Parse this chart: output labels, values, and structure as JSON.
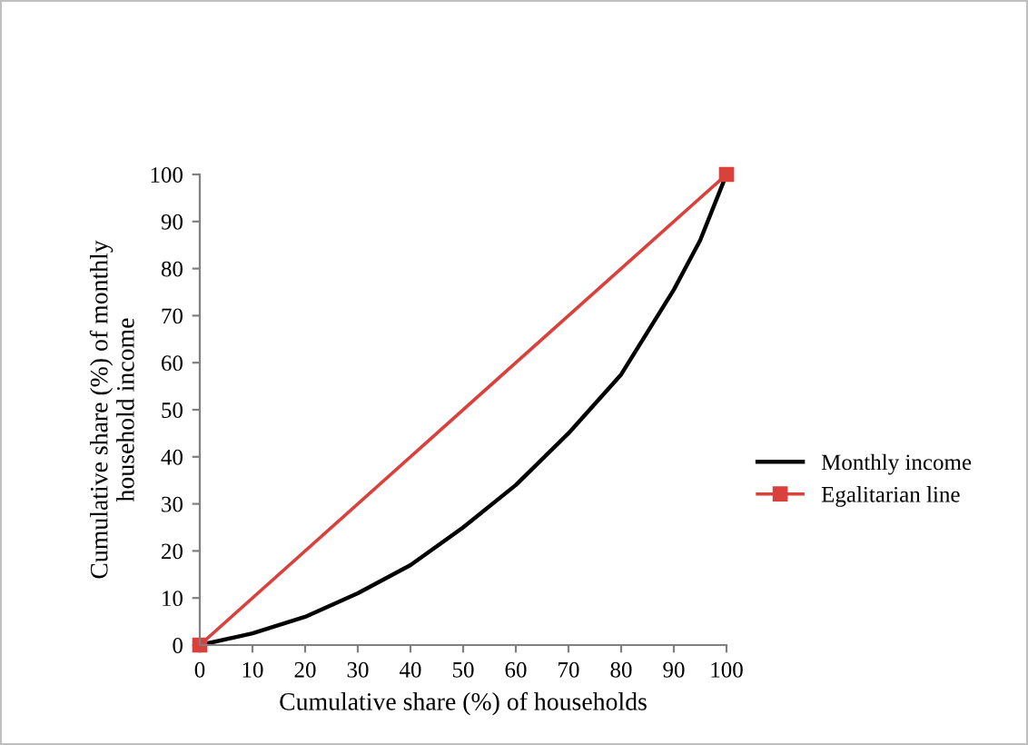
{
  "chart_data": {
    "type": "line",
    "xlabel": "Cumulative share (%) of households",
    "ylabel": "Cumulative share (%) of monthly\nhousehold income",
    "series": [
      {
        "name": "Monthly income",
        "color": "#000000",
        "marker": "none",
        "x": [
          0,
          10,
          20,
          30,
          40,
          50,
          60,
          70,
          80,
          90,
          95,
          100
        ],
        "values": [
          0,
          2.5,
          6,
          11,
          17,
          25,
          34,
          45,
          57.5,
          75.5,
          86,
          100
        ]
      },
      {
        "name": "Egalitarian line",
        "color": "#d9413c",
        "marker": "square",
        "x": [
          0,
          100
        ],
        "values": [
          0,
          100
        ]
      }
    ],
    "xlim": [
      0,
      100
    ],
    "ylim": [
      0,
      100
    ],
    "xticks": [
      0,
      10,
      20,
      30,
      40,
      50,
      60,
      70,
      80,
      90,
      100
    ],
    "yticks": [
      0,
      10,
      20,
      30,
      40,
      50,
      60,
      70,
      80,
      90,
      100
    ],
    "grid": false,
    "legend": "right"
  }
}
